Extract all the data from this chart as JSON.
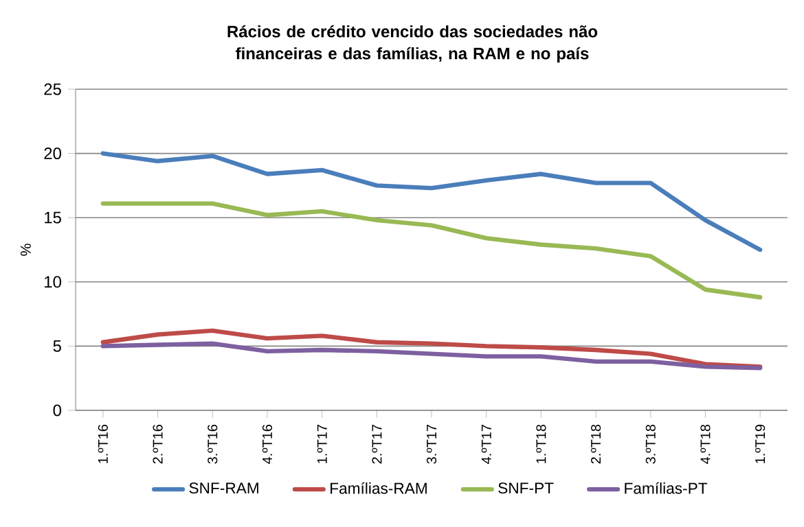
{
  "chart_data": {
    "type": "line",
    "title": "Rácios de crédito vencido das sociedades não financeiras e das famílias, na RAM e no país",
    "ylabel": "%",
    "categories": [
      "1.ºT16",
      "2.ºT16",
      "3.ºT16",
      "4.ºT16",
      "1.ºT17",
      "2.ºT17",
      "3.ºT17",
      "4.ºT17",
      "1.ºT18",
      "2.ºT18",
      "3.ºT18",
      "4.ºT18",
      "1.ºT19"
    ],
    "series": [
      {
        "name": "SNF-RAM",
        "color": "#4a7ebb",
        "values": [
          20.0,
          19.4,
          19.8,
          18.4,
          18.7,
          17.5,
          17.3,
          17.9,
          18.4,
          17.7,
          17.7,
          14.8,
          12.5
        ]
      },
      {
        "name": "Famílias-RAM",
        "color": "#be4b48",
        "values": [
          5.3,
          5.9,
          6.2,
          5.6,
          5.8,
          5.3,
          5.2,
          5.0,
          4.9,
          4.7,
          4.4,
          3.6,
          3.4
        ]
      },
      {
        "name": "SNF-PT",
        "color": "#98b954",
        "values": [
          16.1,
          16.1,
          16.1,
          15.2,
          15.5,
          14.8,
          14.4,
          13.4,
          12.9,
          12.6,
          12.0,
          9.4,
          8.8
        ]
      },
      {
        "name": "Famílias-PT",
        "color": "#7d60a0",
        "values": [
          5.0,
          5.1,
          5.2,
          4.6,
          4.7,
          4.6,
          4.4,
          4.2,
          4.2,
          3.8,
          3.8,
          3.4,
          3.3
        ]
      }
    ],
    "ylim": [
      0,
      25
    ],
    "yticks": [
      0,
      5,
      10,
      15,
      20,
      25
    ],
    "grid": "y",
    "legend": "bottom",
    "marker": "none",
    "line_style": "solid"
  }
}
